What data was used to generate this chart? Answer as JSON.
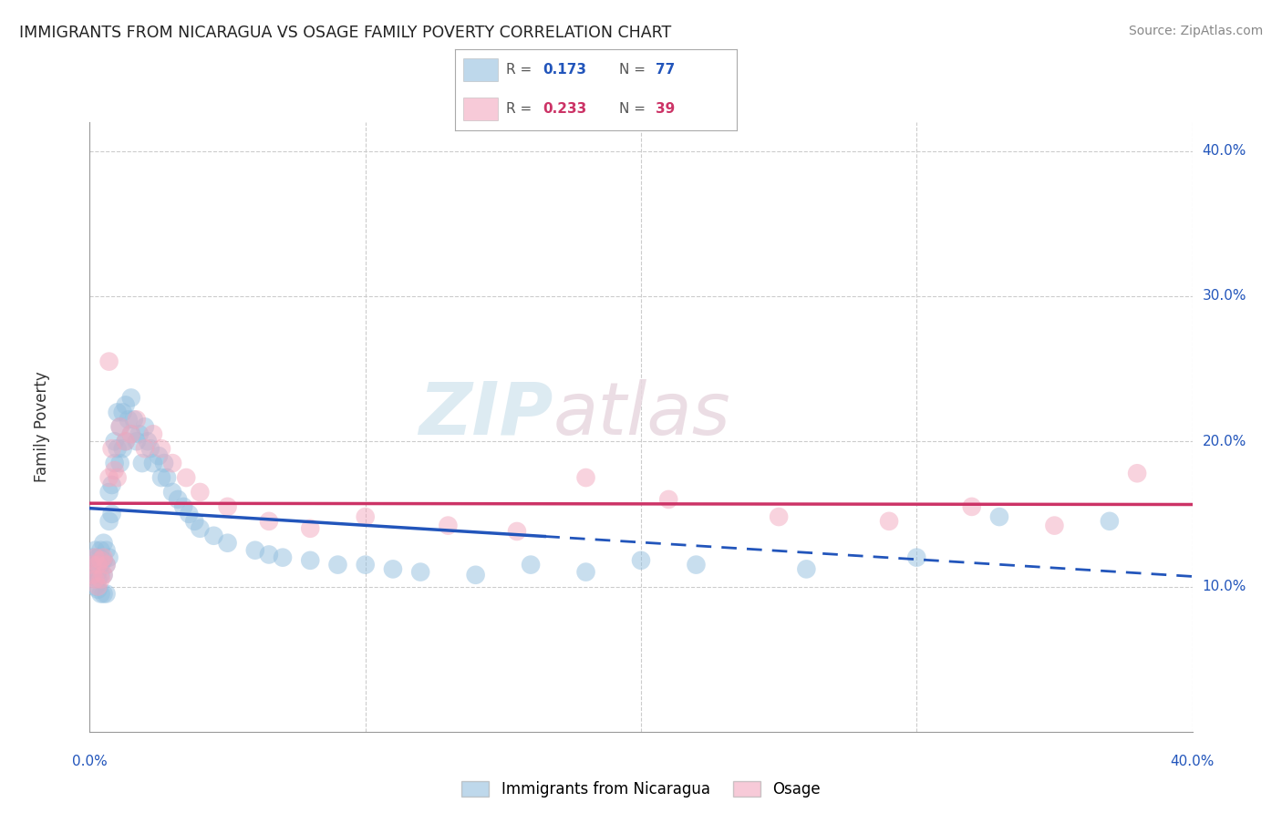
{
  "title": "IMMIGRANTS FROM NICARAGUA VS OSAGE FAMILY POVERTY CORRELATION CHART",
  "source": "Source: ZipAtlas.com",
  "ylabel": "Family Poverty",
  "ytick_vals": [
    0.1,
    0.2,
    0.3,
    0.4
  ],
  "ytick_labels": [
    "10.0%",
    "20.0%",
    "30.0%",
    "40.0%"
  ],
  "xlim": [
    0.0,
    0.4
  ],
  "ylim": [
    0.0,
    0.42
  ],
  "legend1_r": "0.173",
  "legend1_n": "77",
  "legend2_r": "0.233",
  "legend2_n": "39",
  "blue_color": "#93bfdf",
  "pink_color": "#f2a8be",
  "blue_line_color": "#2255bb",
  "pink_line_color": "#cc3366",
  "watermark_zip": "ZIP",
  "watermark_atlas": "atlas",
  "legend_label1": "Immigrants from Nicaragua",
  "legend_label2": "Osage",
  "blue_scatter_x": [
    0.001,
    0.001,
    0.001,
    0.002,
    0.002,
    0.002,
    0.002,
    0.003,
    0.003,
    0.003,
    0.003,
    0.004,
    0.004,
    0.004,
    0.004,
    0.005,
    0.005,
    0.005,
    0.005,
    0.006,
    0.006,
    0.006,
    0.007,
    0.007,
    0.007,
    0.008,
    0.008,
    0.009,
    0.009,
    0.01,
    0.01,
    0.011,
    0.011,
    0.012,
    0.012,
    0.013,
    0.013,
    0.014,
    0.015,
    0.015,
    0.016,
    0.017,
    0.018,
    0.019,
    0.02,
    0.021,
    0.022,
    0.023,
    0.025,
    0.026,
    0.027,
    0.028,
    0.03,
    0.032,
    0.034,
    0.036,
    0.038,
    0.04,
    0.045,
    0.05,
    0.06,
    0.065,
    0.07,
    0.08,
    0.09,
    0.1,
    0.11,
    0.12,
    0.14,
    0.16,
    0.18,
    0.2,
    0.22,
    0.26,
    0.3,
    0.33,
    0.37
  ],
  "blue_scatter_y": [
    0.12,
    0.115,
    0.11,
    0.125,
    0.115,
    0.108,
    0.1,
    0.12,
    0.11,
    0.105,
    0.098,
    0.125,
    0.115,
    0.108,
    0.095,
    0.13,
    0.118,
    0.108,
    0.095,
    0.125,
    0.115,
    0.095,
    0.165,
    0.145,
    0.12,
    0.17,
    0.15,
    0.2,
    0.185,
    0.195,
    0.22,
    0.21,
    0.185,
    0.22,
    0.195,
    0.225,
    0.2,
    0.215,
    0.23,
    0.205,
    0.215,
    0.2,
    0.205,
    0.185,
    0.21,
    0.2,
    0.195,
    0.185,
    0.19,
    0.175,
    0.185,
    0.175,
    0.165,
    0.16,
    0.155,
    0.15,
    0.145,
    0.14,
    0.135,
    0.13,
    0.125,
    0.122,
    0.12,
    0.118,
    0.115,
    0.115,
    0.112,
    0.11,
    0.108,
    0.115,
    0.11,
    0.118,
    0.115,
    0.112,
    0.12,
    0.148,
    0.145
  ],
  "pink_scatter_x": [
    0.001,
    0.001,
    0.002,
    0.002,
    0.003,
    0.003,
    0.004,
    0.004,
    0.005,
    0.005,
    0.006,
    0.007,
    0.007,
    0.008,
    0.009,
    0.01,
    0.011,
    0.013,
    0.015,
    0.017,
    0.02,
    0.023,
    0.026,
    0.03,
    0.035,
    0.04,
    0.05,
    0.065,
    0.08,
    0.1,
    0.13,
    0.155,
    0.18,
    0.21,
    0.25,
    0.29,
    0.32,
    0.35,
    0.38
  ],
  "pink_scatter_y": [
    0.115,
    0.108,
    0.12,
    0.105,
    0.115,
    0.1,
    0.118,
    0.105,
    0.12,
    0.108,
    0.115,
    0.255,
    0.175,
    0.195,
    0.18,
    0.175,
    0.21,
    0.2,
    0.205,
    0.215,
    0.195,
    0.205,
    0.195,
    0.185,
    0.175,
    0.165,
    0.155,
    0.145,
    0.14,
    0.148,
    0.142,
    0.138,
    0.175,
    0.16,
    0.148,
    0.145,
    0.155,
    0.142,
    0.178
  ]
}
